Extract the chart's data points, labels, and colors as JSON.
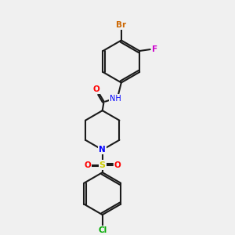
{
  "bg_color": "#f0f0f0",
  "bond_color": "#1a1a1a",
  "atom_colors": {
    "Br": "#cc6600",
    "F": "#cc00cc",
    "N": "#0000ff",
    "O": "#ff0000",
    "S": "#cccc00",
    "Cl": "#00aa00",
    "C": "#1a1a1a",
    "H": "#1a1a1a"
  }
}
